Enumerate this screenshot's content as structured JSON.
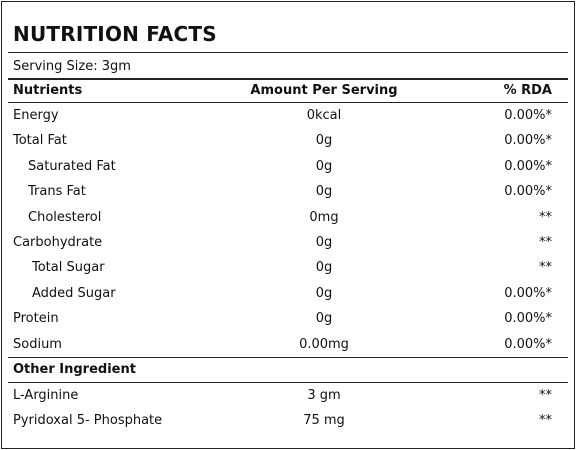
{
  "title": "NUTRITION FACTS",
  "serving_size": "Serving Size: 3gm",
  "table": {
    "header": [
      "Nutrients",
      "Amount Per Serving",
      "% RDA"
    ],
    "rows": [
      [
        "Energy",
        "0kcal",
        "0.00%*"
      ],
      [
        "Total Fat",
        "0g",
        "0.00%*"
      ],
      [
        "Saturated Fat",
        "0g",
        "0.00%*"
      ],
      [
        "Trans Fat",
        "0g",
        "0.00%*"
      ],
      [
        "Cholesterol",
        "0mg",
        "**"
      ],
      [
        "Carbohydrate",
        "0g",
        "**"
      ],
      [
        "Total Sugar",
        "0g",
        "**"
      ],
      [
        "Added Sugar",
        "0g",
        "0.00%*"
      ],
      [
        "Protein",
        "0g",
        "0.00%*"
      ],
      [
        "Sodium",
        "0.00mg",
        "0.00%*"
      ]
    ]
  },
  "other": {
    "heading": "Other Ingredient",
    "rows": [
      [
        "L-Arginine",
        "3 gm",
        "**"
      ],
      [
        "Pyridoxal 5- Phosphate",
        "75 mg",
        "**"
      ]
    ]
  }
}
